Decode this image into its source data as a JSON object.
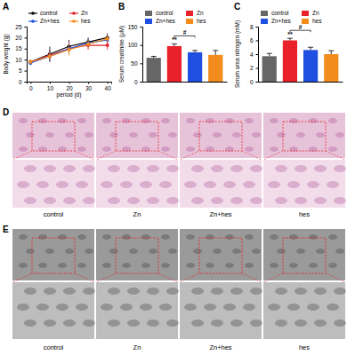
{
  "chart_data": [
    {
      "type": "line",
      "title": "A",
      "x": [
        0,
        10,
        20,
        30,
        40
      ],
      "xlabel": "period (d)",
      "ylabel": "Body weight (g)",
      "xlim": [
        -2,
        42
      ],
      "xticks": [
        0,
        10,
        20,
        30,
        40
      ],
      "ylim": [
        0,
        25
      ],
      "yticks": [
        0,
        5,
        10,
        15,
        20,
        25
      ],
      "legend": "top",
      "marker": "circle",
      "series": [
        {
          "name": "control",
          "color": "#000000",
          "values": [
            9,
            12.5,
            16,
            18,
            20
          ],
          "errors": [
            1,
            3.5,
            3,
            2,
            2
          ]
        },
        {
          "name": "Zn",
          "color": "#e8212a",
          "values": [
            9,
            12,
            15,
            16.5,
            16.5
          ],
          "errors": [
            1,
            2.5,
            3,
            2,
            2
          ]
        },
        {
          "name": "Zn+hes",
          "color": "#1f4fe0",
          "values": [
            8.5,
            11.5,
            15,
            17.5,
            19
          ],
          "errors": [
            1,
            2.5,
            2.5,
            2,
            1.5
          ]
        },
        {
          "name": "hes",
          "color": "#f28c1c",
          "values": [
            9,
            11.5,
            14.5,
            17,
            19.5
          ],
          "errors": [
            1,
            2,
            2.5,
            2,
            1.5
          ]
        }
      ]
    },
    {
      "type": "bar",
      "title": "B",
      "categories": [
        "control",
        "Zn",
        "Zn+hes",
        "hes"
      ],
      "values": [
        65,
        97,
        80,
        73
      ],
      "errors": [
        4,
        6,
        5,
        12
      ],
      "colors": [
        "#666666",
        "#e8212a",
        "#1f4fe0",
        "#f28c1c"
      ],
      "ylabel": "Serum creatinine (μM)",
      "ylim": [
        0,
        150
      ],
      "yticks": [
        0,
        50,
        100,
        150
      ],
      "legend": "top",
      "tick_labels": "y",
      "annotations": [
        "**",
        "#"
      ]
    },
    {
      "type": "bar",
      "title": "C",
      "categories": [
        "control",
        "Zn",
        "Zn+hes",
        "hes"
      ],
      "values": [
        3.7,
        6.0,
        4.6,
        4.0
      ],
      "errors": [
        0.4,
        0.3,
        0.4,
        0.5
      ],
      "colors": [
        "#666666",
        "#e8212a",
        "#1f4fe0",
        "#f28c1c"
      ],
      "ylabel": "Serum urea nitrogen (mM)",
      "ylim": [
        0,
        8
      ],
      "yticks": [
        0,
        2,
        4,
        6,
        8
      ],
      "legend": "top",
      "tick_labels": "y",
      "annotations": [
        "**",
        "#"
      ]
    }
  ],
  "images": [
    {
      "title": "D",
      "captions": [
        "control",
        "Zn",
        "Zn+hes",
        "hes"
      ]
    },
    {
      "title": "E",
      "captions": [
        "control",
        "Zn",
        "Zn+hes",
        "hes"
      ]
    }
  ]
}
